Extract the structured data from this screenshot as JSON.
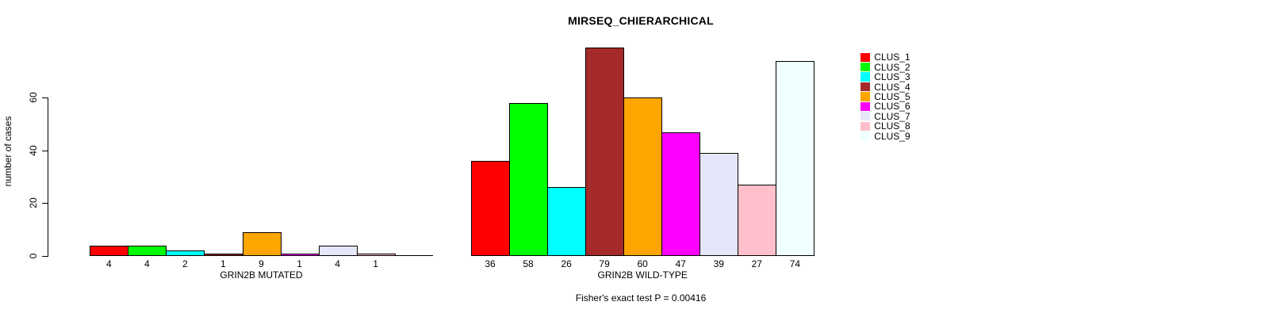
{
  "chart_data": {
    "type": "bar",
    "title": "MIRSEQ_CHIERARCHICAL",
    "ylabel": "number of cases",
    "xlabel": "",
    "yticks": [
      0,
      20,
      40,
      60
    ],
    "ylim": [
      0,
      60
    ],
    "grid": false,
    "legend_position": "right-outside",
    "footnote": "Fisher's exact test P = 0.00416",
    "clusters": [
      {
        "name": "CLUS_1",
        "color": "#FF0000"
      },
      {
        "name": "CLUS_2",
        "color": "#00FF00"
      },
      {
        "name": "CLUS_3",
        "color": "#00FFFF"
      },
      {
        "name": "CLUS_4",
        "color": "#A52A2A"
      },
      {
        "name": "CLUS_5",
        "color": "#FFA500"
      },
      {
        "name": "CLUS_6",
        "color": "#FF00FF"
      },
      {
        "name": "CLUS_7",
        "color": "#E6E6FA"
      },
      {
        "name": "CLUS_8",
        "color": "#FFC0CB"
      },
      {
        "name": "CLUS_9",
        "color": "#F0FFFF"
      }
    ],
    "groups": [
      {
        "label": "GRIN2B MUTATED",
        "values": [
          4,
          4,
          2,
          1,
          9,
          1,
          4,
          1,
          0
        ],
        "bar_labels": [
          "4",
          "4",
          "2",
          "1",
          "9",
          "1",
          "4",
          "1",
          ""
        ]
      },
      {
        "label": "GRIN2B WILD-TYPE",
        "values": [
          36,
          58,
          26,
          79,
          60,
          47,
          39,
          27,
          74
        ],
        "bar_labels": [
          "36",
          "58",
          "26",
          "79",
          "60",
          "47",
          "39",
          "27",
          "74"
        ]
      }
    ]
  }
}
